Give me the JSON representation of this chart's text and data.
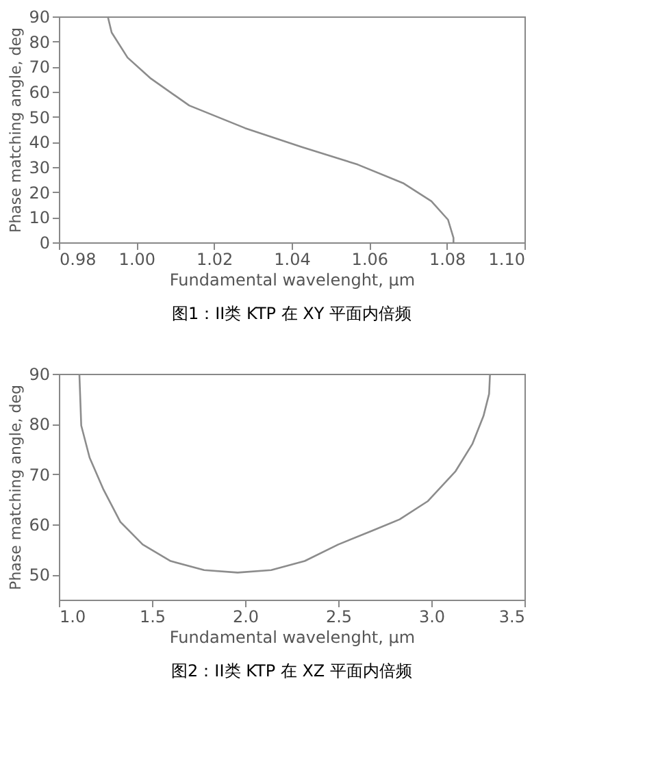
{
  "chart_data": [
    {
      "type": "line",
      "xlabel": "Fundamental wavelenght, μm",
      "ylabel": "Phase matching angle, deg",
      "annotations": [
        "图1：II类 KTP 在 XY 平面内倍频"
      ],
      "x": [
        0.9926,
        0.9936,
        0.9977,
        1.0035,
        1.0136,
        1.028,
        1.0426,
        1.057,
        1.0687,
        1.076,
        1.0803,
        1.0817,
        1.0817
      ],
      "series": [
        {
          "color": "#8c8c8c",
          "values": [
            90,
            83.6,
            73.6,
            65.5,
            54.5,
            45.5,
            38,
            31,
            23.6,
            16.4,
            9,
            1.8,
            0
          ]
        }
      ],
      "xlim": [
        0.98,
        1.1
      ],
      "xticks": [
        0.98,
        {
          "value": 1.0,
          "label": "1.00"
        },
        1.02,
        1.04,
        1.06,
        1.08,
        {
          "value": 1.1,
          "label": "1.10"
        }
      ],
      "ylim": [
        0,
        90
      ],
      "yticks": [
        0,
        10,
        20,
        30,
        40,
        50,
        60,
        70,
        80,
        90
      ],
      "grid": false,
      "marker": "none",
      "line_style": "solid"
    },
    {
      "type": "line",
      "xlabel": "Fundamental wavelenght, μm",
      "ylabel": "Phase matching angle, deg",
      "annotations": [
        "图2：II类 KTP 在 XZ 平面内倍频"
      ],
      "x": [
        1.11,
        1.12,
        1.165,
        1.24,
        1.33,
        1.45,
        1.6,
        1.78,
        1.96,
        2.14,
        2.32,
        2.5,
        2.68,
        2.83,
        2.98,
        3.13,
        3.22,
        3.28,
        3.31,
        3.315
      ],
      "series": [
        {
          "color": "#8c8c8c",
          "values": [
            90,
            79.7,
            73.3,
            66.9,
            60.5,
            56,
            52.7,
            50.9,
            50.4,
            50.9,
            52.7,
            56,
            58.7,
            61,
            64.6,
            70.6,
            76,
            81.6,
            86,
            90
          ]
        }
      ],
      "xlim": [
        1.0,
        3.5
      ],
      "xticks": [
        {
          "value": 1.0,
          "label": "1.0"
        },
        1.5,
        {
          "value": 2.0,
          "label": "2.0"
        },
        2.5,
        {
          "value": 3.0,
          "label": "3.0"
        },
        3.5
      ],
      "ylim": [
        45,
        90
      ],
      "yticks": [
        50,
        60,
        70,
        80,
        90
      ],
      "grid": false,
      "marker": "none",
      "line_style": "solid"
    }
  ]
}
